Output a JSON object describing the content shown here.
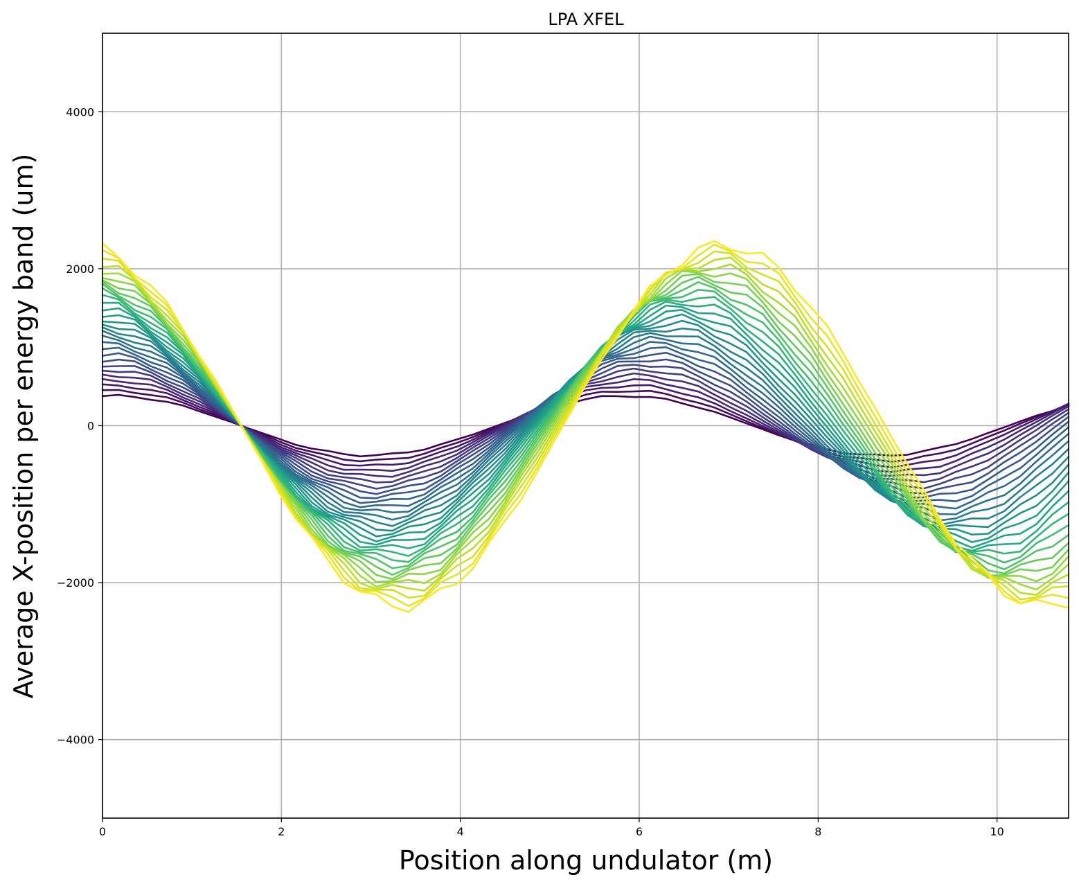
{
  "chart_data": {
    "type": "line",
    "title": "LPA XFEL",
    "xlabel": "Position along undulator (m)",
    "ylabel": "Average X-position per energy band (um)",
    "xlim": [
      0,
      10.8
    ],
    "ylim": [
      -5000,
      5000
    ],
    "xticks": [
      0,
      2,
      4,
      6,
      8,
      10
    ],
    "yticks": [
      -4000,
      -2000,
      0,
      2000,
      4000
    ],
    "xtick_labels": [
      "0",
      "2",
      "4",
      "6",
      "8",
      "10"
    ],
    "ytick_labels": [
      "−4000",
      "−2000",
      "0",
      "2000",
      "4000"
    ],
    "grid": true,
    "colormap": "viridis",
    "series_count": 30,
    "x": [
      0,
      0.18,
      0.36,
      0.54,
      0.72,
      0.9,
      1.08,
      1.26,
      1.44,
      1.62,
      1.8,
      1.98,
      2.16,
      2.34,
      2.52,
      2.7,
      2.88,
      3.06,
      3.24,
      3.42,
      3.6,
      3.78,
      3.96,
      4.14,
      4.32,
      4.5,
      4.68,
      4.86,
      5.04,
      5.22,
      5.4,
      5.58,
      5.76,
      5.94,
      6.12,
      6.3,
      6.48,
      6.66,
      6.84,
      7.02,
      7.2,
      7.38,
      7.56,
      7.74,
      7.92,
      8.1,
      8.28,
      8.46,
      8.64,
      8.82,
      9.0,
      9.18,
      9.36,
      9.54,
      9.72,
      9.9,
      10.08,
      10.26,
      10.44,
      10.62,
      10.8
    ],
    "series_curves": {
      "lowest_energy_band": {
        "start_value": 380,
        "extrema": [
          {
            "x": 0,
            "y": 380
          },
          {
            "x": 2.9,
            "y": -360
          },
          {
            "x": 6.0,
            "y": 370
          },
          {
            "x": 8.8,
            "y": -360
          },
          {
            "x": 10.8,
            "y": 220
          }
        ]
      },
      "highest_energy_band": {
        "start_value": 2300,
        "extrema": [
          {
            "x": 0,
            "y": 2300
          },
          {
            "x": 3.6,
            "y": -2280
          },
          {
            "x": 7.2,
            "y": 2240
          },
          {
            "x": 10.8,
            "y": -2180
          }
        ]
      }
    },
    "curve_model": {
      "amplitude_range": [
        380,
        2300
      ],
      "phase_shift_range": [
        0,
        0.25
      ],
      "period_range": [
        5.72,
        7.2
      ],
      "crossing_near_x": 1.55
    }
  }
}
